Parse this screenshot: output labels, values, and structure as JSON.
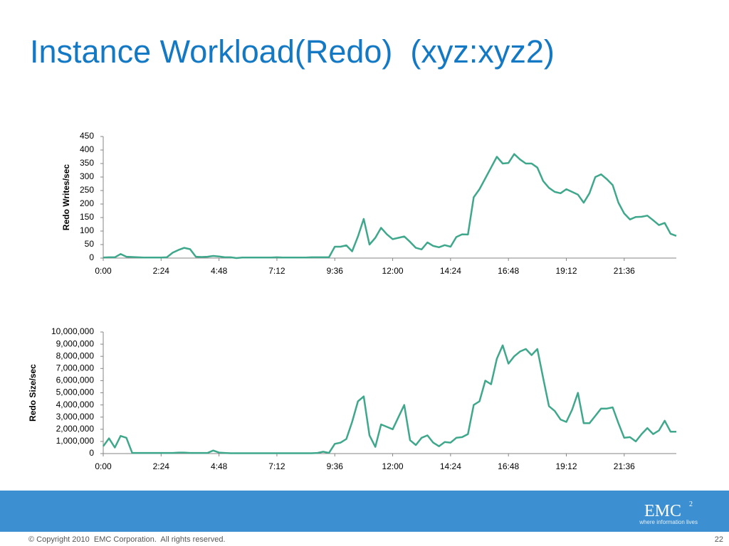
{
  "slide": {
    "title": "Instance Workload(Redo)  (xyz:xyz2)",
    "footer": "© Copyright 2010  EMC Corporation.  All rights reserved.",
    "page_number": "22",
    "logo": "EMC",
    "logo_superscript": "2",
    "tagline": "where information lives"
  },
  "chart_data": [
    {
      "type": "line",
      "y_label": "Redo Writes/sec",
      "color": "#3fa88c",
      "x": [
        0,
        0.24,
        0.48,
        0.72,
        0.96,
        1.2,
        1.44,
        1.68,
        1.92,
        2.16,
        2.4,
        2.64,
        2.88,
        3.12,
        3.36,
        3.6,
        3.84,
        4.08,
        4.32,
        4.56,
        4.8,
        5.04,
        5.28,
        5.52,
        5.76,
        6,
        6.24,
        6.48,
        6.72,
        6.96,
        7.2,
        7.44,
        7.68,
        7.92,
        8.16,
        8.4,
        8.64,
        8.88,
        9.12,
        9.36,
        9.6,
        9.84,
        10.08,
        10.32,
        10.56,
        10.8,
        11.04,
        11.28,
        11.52,
        11.76,
        12,
        12.24,
        12.48,
        12.72,
        12.96,
        13.2,
        13.44,
        13.68,
        13.92,
        14.16,
        14.4,
        14.64,
        14.88,
        15.12,
        15.36,
        15.6,
        15.84,
        16.08,
        16.32,
        16.56,
        16.8,
        17.04,
        17.28,
        17.52,
        17.76,
        18,
        18.24,
        18.48,
        18.72,
        18.96,
        19.2,
        19.44,
        19.68,
        19.92,
        20.16,
        20.4,
        20.64,
        20.88,
        21.12,
        21.36,
        21.6,
        21.84,
        22.08,
        22.32,
        22.56,
        22.8,
        23.04,
        23.28,
        23.52,
        23.76
      ],
      "values": [
        2,
        3,
        3,
        15,
        5,
        4,
        3,
        2,
        2,
        2,
        2,
        3,
        20,
        30,
        38,
        33,
        5,
        4,
        5,
        8,
        6,
        3,
        3,
        0,
        2,
        2,
        2,
        2,
        2,
        2,
        3,
        2,
        2,
        2,
        2,
        2,
        3,
        3,
        3,
        3,
        42,
        42,
        47,
        25,
        80,
        145,
        50,
        75,
        112,
        88,
        70,
        75,
        80,
        60,
        38,
        32,
        58,
        45,
        40,
        48,
        42,
        78,
        88,
        87,
        225,
        255,
        295,
        335,
        375,
        350,
        352,
        385,
        365,
        350,
        350,
        335,
        285,
        260,
        245,
        240,
        255,
        245,
        235,
        205,
        240,
        300,
        310,
        292,
        270,
        205,
        165,
        143,
        152,
        153,
        157,
        140,
        122,
        130,
        90,
        82
      ],
      "xlim": [
        0,
        23.76
      ],
      "xticks": [
        {
          "value": 0,
          "label": "0:00"
        },
        {
          "value": 2.4,
          "label": "2:24"
        },
        {
          "value": 4.8,
          "label": "4:48"
        },
        {
          "value": 7.2,
          "label": "7:12"
        },
        {
          "value": 9.6,
          "label": "9:36"
        },
        {
          "value": 12,
          "label": "12:00"
        },
        {
          "value": 14.4,
          "label": "14:24"
        },
        {
          "value": 16.8,
          "label": "16:48"
        },
        {
          "value": 19.2,
          "label": "19:12"
        },
        {
          "value": 21.6,
          "label": "21:36"
        }
      ],
      "ylim": [
        0,
        450
      ],
      "yticks": [
        0,
        50,
        100,
        150,
        200,
        250,
        300,
        350,
        400,
        450
      ]
    },
    {
      "type": "line",
      "y_label": "Redo Size/sec",
      "color": "#3fa88c",
      "x": [
        0,
        0.24,
        0.48,
        0.72,
        0.96,
        1.2,
        1.44,
        1.68,
        1.92,
        2.16,
        2.4,
        2.64,
        2.88,
        3.12,
        3.36,
        3.6,
        3.84,
        4.08,
        4.32,
        4.56,
        4.8,
        5.04,
        5.28,
        5.52,
        5.76,
        6,
        6.24,
        6.48,
        6.72,
        6.96,
        7.2,
        7.44,
        7.68,
        7.92,
        8.16,
        8.4,
        8.64,
        8.88,
        9.12,
        9.36,
        9.6,
        9.84,
        10.08,
        10.32,
        10.56,
        10.8,
        11.04,
        11.28,
        11.52,
        11.76,
        12,
        12.24,
        12.48,
        12.72,
        12.96,
        13.2,
        13.44,
        13.68,
        13.92,
        14.16,
        14.4,
        14.64,
        14.88,
        15.12,
        15.36,
        15.6,
        15.84,
        16.08,
        16.32,
        16.56,
        16.8,
        17.04,
        17.28,
        17.52,
        17.76,
        18,
        18.24,
        18.48,
        18.72,
        18.96,
        19.2,
        19.44,
        19.68,
        19.92,
        20.16,
        20.4,
        20.64,
        20.88,
        21.12,
        21.36,
        21.6,
        21.84,
        22.08,
        22.32,
        22.56,
        22.8,
        23.04,
        23.28,
        23.52,
        23.76
      ],
      "values": [
        600000,
        1250000,
        500000,
        1450000,
        1300000,
        50000,
        50000,
        50000,
        50000,
        50000,
        50000,
        50000,
        50000,
        80000,
        80000,
        50000,
        50000,
        50000,
        50000,
        250000,
        80000,
        50000,
        30000,
        30000,
        30000,
        30000,
        30000,
        30000,
        30000,
        30000,
        30000,
        30000,
        30000,
        30000,
        30000,
        30000,
        30000,
        50000,
        150000,
        50000,
        800000,
        900000,
        1200000,
        2600000,
        4300000,
        4700000,
        1500000,
        550000,
        2400000,
        2200000,
        2000000,
        3000000,
        4000000,
        1100000,
        700000,
        1300000,
        1500000,
        900000,
        600000,
        950000,
        900000,
        1300000,
        1350000,
        1600000,
        4000000,
        4300000,
        6000000,
        5700000,
        7800000,
        8900000,
        7400000,
        8000000,
        8400000,
        8600000,
        8100000,
        8600000,
        6200000,
        3900000,
        3500000,
        2800000,
        2600000,
        3600000,
        5000000,
        2500000,
        2500000,
        3100000,
        3700000,
        3700000,
        3800000,
        2500000,
        1300000,
        1350000,
        1000000,
        1600000,
        2100000,
        1600000,
        1900000,
        2700000,
        1800000,
        1800000
      ],
      "xlim": [
        0,
        23.76
      ],
      "xticks": [
        {
          "value": 0,
          "label": "0:00"
        },
        {
          "value": 2.4,
          "label": "2:24"
        },
        {
          "value": 4.8,
          "label": "4:48"
        },
        {
          "value": 7.2,
          "label": "7:12"
        },
        {
          "value": 9.6,
          "label": "9:36"
        },
        {
          "value": 12,
          "label": "12:00"
        },
        {
          "value": 14.4,
          "label": "14:24"
        },
        {
          "value": 16.8,
          "label": "16:48"
        },
        {
          "value": 19.2,
          "label": "19:12"
        },
        {
          "value": 21.6,
          "label": "21:36"
        }
      ],
      "ylim": [
        0,
        10000000
      ],
      "yticks": [
        0,
        {
          "value": 1000000,
          "label": "1,000,000"
        },
        {
          "value": 2000000,
          "label": "2,000,000"
        },
        {
          "value": 3000000,
          "label": "3,000,000"
        },
        {
          "value": 4000000,
          "label": "4,000,000"
        },
        {
          "value": 5000000,
          "label": "5,000,000"
        },
        {
          "value": 6000000,
          "label": "6,000,000"
        },
        {
          "value": 7000000,
          "label": "7,000,000"
        },
        {
          "value": 8000000,
          "label": "8,000,000"
        },
        {
          "value": 9000000,
          "label": "9,000,000"
        },
        {
          "value": 10000000,
          "label": "10,000,000"
        }
      ]
    }
  ]
}
